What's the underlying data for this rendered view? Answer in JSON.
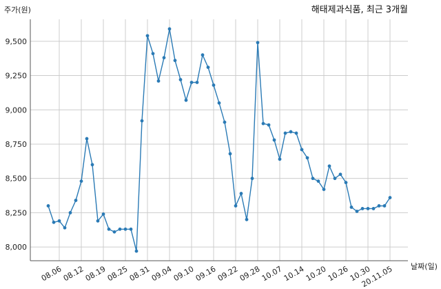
{
  "chart_data": {
    "type": "line",
    "title": "해태제과식품, 최근 3개월",
    "ylabel": "주가(원)",
    "xlabel": "날짜(일)",
    "ylim": [
      7900,
      9660
    ],
    "yticks": [
      8000,
      8250,
      8500,
      8750,
      9000,
      9250,
      9500
    ],
    "ytick_labels": [
      "8,000",
      "8,250",
      "8,500",
      "8,750",
      "9,000",
      "9,250",
      "9,500"
    ],
    "xticks": [
      {
        "index": 2,
        "label": "08.06"
      },
      {
        "index": 6,
        "label": "08.12"
      },
      {
        "index": 10,
        "label": "08.19"
      },
      {
        "index": 14,
        "label": "08.25"
      },
      {
        "index": 18,
        "label": "08.31"
      },
      {
        "index": 22,
        "label": "09.04"
      },
      {
        "index": 26,
        "label": "09.10"
      },
      {
        "index": 30,
        "label": "09.16"
      },
      {
        "index": 34,
        "label": "09.22"
      },
      {
        "index": 38,
        "label": "09.28"
      },
      {
        "index": 42,
        "label": "10.07"
      },
      {
        "index": 46,
        "label": "10.14"
      },
      {
        "index": 50,
        "label": "10.20"
      },
      {
        "index": 54,
        "label": "10.26"
      },
      {
        "index": 58,
        "label": "10.30"
      },
      {
        "index": 62,
        "label": "20.11.05"
      }
    ],
    "grid": true,
    "color": "#2a7ab5",
    "series": [
      {
        "values": [
          8300,
          8180,
          8190,
          8140,
          8250,
          8340,
          8480,
          8790,
          8600,
          8190,
          8240,
          8130,
          8110,
          8130,
          8130,
          8130,
          7970,
          8920,
          9540,
          9410,
          9210,
          9380,
          9590,
          9360,
          9220,
          9070,
          9200,
          9200,
          9400,
          9310,
          9180,
          9050,
          8910,
          8680,
          8300,
          8390,
          8200,
          8500,
          9490,
          8900,
          8890,
          8780,
          8640,
          8830,
          8840,
          8830,
          8710,
          8650,
          8500,
          8480,
          8420,
          8590,
          8500,
          8530,
          8470,
          8290,
          8260,
          8280,
          8280,
          8280,
          8300,
          8300,
          8360
        ]
      }
    ]
  }
}
